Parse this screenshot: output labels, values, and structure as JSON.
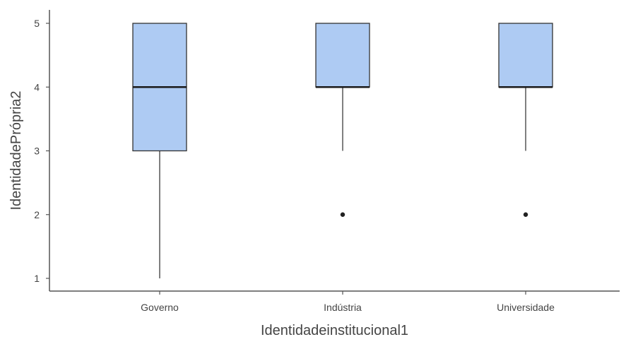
{
  "chart_data": {
    "type": "box",
    "title": "",
    "xlabel": "Identidadeinstitucional1",
    "ylabel": "IdentidadePrópria2",
    "categories": [
      "Governo",
      "Indústria",
      "Universidade"
    ],
    "ylim": [
      0.9,
      5.2
    ],
    "y_ticks": [
      "1",
      "2",
      "3",
      "4",
      "5"
    ],
    "grid": false,
    "legend": "none",
    "boxes": [
      {
        "category": "Governo",
        "whisker_low": 1,
        "q1": 3,
        "median": 4,
        "q3": 5,
        "whisker_high": 5,
        "outliers": []
      },
      {
        "category": "Indústria",
        "whisker_low": 3,
        "q1": 4,
        "median": 4,
        "q3": 5,
        "whisker_high": 5,
        "outliers": [
          2
        ]
      },
      {
        "category": "Universidade",
        "whisker_low": 3,
        "q1": 4,
        "median": 4,
        "q3": 5,
        "whisker_high": 5,
        "outliers": [
          2
        ]
      }
    ],
    "colors": {
      "box_fill": "#aecbf3",
      "box_stroke": "#333333",
      "whisker": "#555555",
      "median": "#1a1a1a",
      "outlier": "#222222",
      "axis": "#555555"
    }
  }
}
